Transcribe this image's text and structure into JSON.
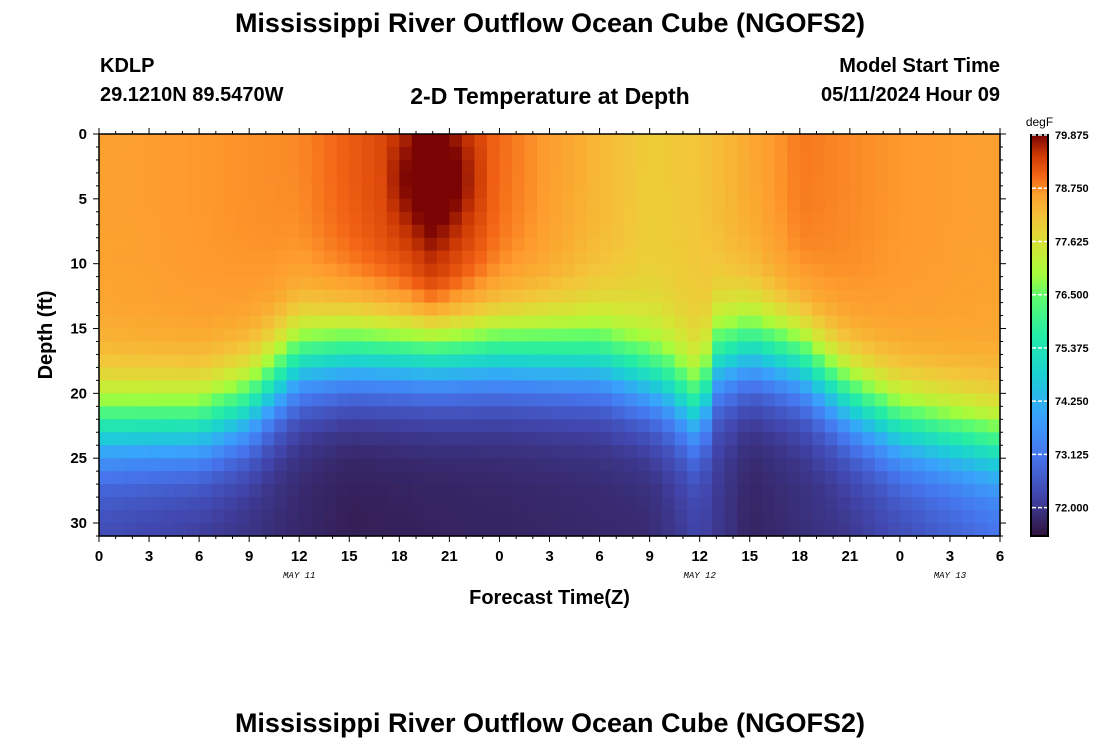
{
  "header": {
    "title": "Mississippi River Outflow Ocean Cube (NGOFS2)",
    "station_id": "KDLP",
    "station_location": "29.1210N  89.5470W",
    "plot_title": "2-D Temperature at Depth",
    "model_start_label": "Model Start Time",
    "model_start_value": "05/11/2024 Hour 09"
  },
  "footer": {
    "title": "Mississippi River Outflow Ocean Cube (NGOFS2)"
  },
  "chart_data": {
    "type": "heatmap",
    "title": "2-D Temperature at Depth",
    "xlabel": "Forecast Time(Z)",
    "ylabel": "Depth (ft)",
    "x_tick_labels": [
      "0",
      "3",
      "6",
      "9",
      "12",
      "15",
      "18",
      "21",
      "0",
      "3",
      "6",
      "9",
      "12",
      "15",
      "18",
      "21",
      "0",
      "3",
      "6"
    ],
    "x_hours": [
      0,
      3,
      6,
      9,
      12,
      15,
      18,
      21,
      24,
      27,
      30,
      33,
      36,
      39,
      42,
      45,
      48,
      51,
      54
    ],
    "xlim": [
      0,
      54
    ],
    "date_labels": [
      {
        "label": "MAY 11",
        "hour": 12
      },
      {
        "label": "MAY 12",
        "hour": 36
      },
      {
        "label": "MAY 13",
        "hour": 51
      }
    ],
    "y_ticks": [
      0,
      5,
      10,
      15,
      20,
      25,
      30
    ],
    "y_tick_labels": [
      "0",
      "5",
      "10",
      "15",
      "20",
      "25",
      "30"
    ],
    "ylim": [
      0,
      31
    ],
    "colorbar": {
      "label": "degF",
      "min": 71.4,
      "max": 79.875,
      "tick_values": [
        79.875,
        78.75,
        77.625,
        76.5,
        75.375,
        74.25,
        73.125,
        72.0
      ],
      "tick_labels": [
        "79.875",
        "78.750",
        "77.625",
        "76.500",
        "75.375",
        "74.250",
        "73.125",
        "72.000"
      ]
    },
    "thermocline_depth_ft": {
      "hours": [
        0,
        6,
        9,
        12,
        15,
        24,
        30,
        34,
        36,
        37,
        39,
        42,
        45,
        48,
        54
      ],
      "values": [
        22.5,
        22.5,
        21,
        17.5,
        17,
        17,
        17.5,
        19.5,
        21.5,
        17.5,
        16.5,
        17.5,
        20.5,
        22.5,
        24
      ]
    },
    "surface_temp_degF": {
      "hours": [
        0,
        12,
        18,
        20,
        24,
        30,
        33,
        36,
        42,
        48,
        54
      ],
      "values": [
        78.6,
        78.8,
        79.4,
        79.8,
        79.0,
        78.3,
        78.0,
        78.1,
        78.9,
        78.7,
        78.6
      ]
    },
    "bottom_temp_degF": {
      "hours": [
        0,
        9,
        15,
        24,
        33,
        36,
        39,
        45,
        51,
        54
      ],
      "values": [
        72.3,
        71.9,
        71.6,
        71.7,
        71.8,
        72.2,
        71.7,
        72.0,
        72.6,
        72.9
      ]
    }
  }
}
